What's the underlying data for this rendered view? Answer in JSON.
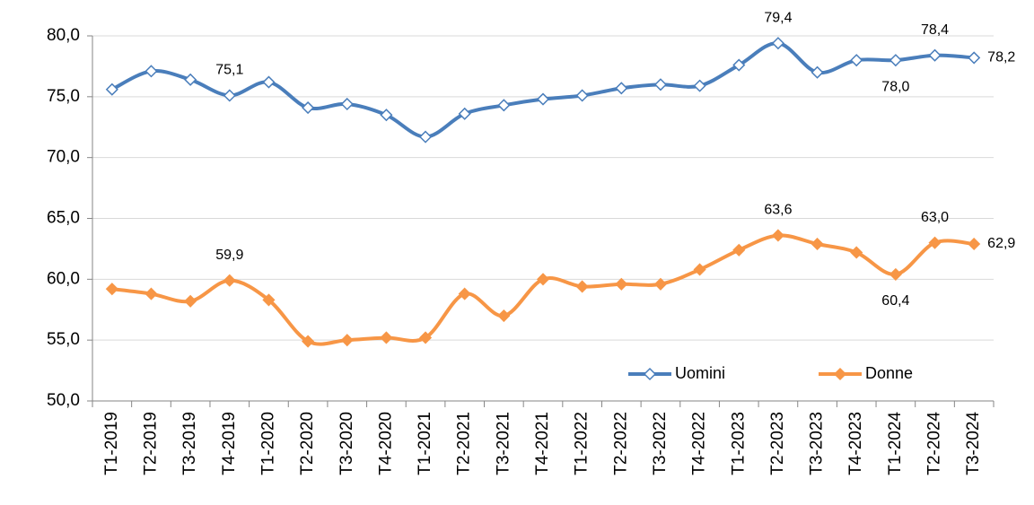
{
  "chart_data": {
    "type": "line",
    "categories": [
      "T1-2019",
      "T2-2019",
      "T3-2019",
      "T4-2019",
      "T1-2020",
      "T2-2020",
      "T3-2020",
      "T4-2020",
      "T1-2021",
      "T2-2021",
      "T3-2021",
      "T4-2021",
      "T1-2022",
      "T2-2022",
      "T3-2022",
      "T4-2022",
      "T1-2023",
      "T2-2023",
      "T3-2023",
      "T4-2023",
      "T1-2024",
      "T2-2024",
      "T3-2024"
    ],
    "series": [
      {
        "name": "Uomini",
        "color": "#4a7ebb",
        "marker_fill": "#ffffff",
        "values": [
          75.6,
          77.1,
          76.4,
          75.1,
          76.2,
          74.1,
          74.4,
          73.5,
          71.7,
          73.6,
          74.3,
          74.8,
          75.1,
          75.7,
          76.0,
          75.9,
          77.6,
          79.4,
          77.0,
          78.0,
          78.0,
          78.4,
          78.2
        ],
        "value_labels": [
          null,
          null,
          null,
          "75,1",
          null,
          null,
          null,
          null,
          null,
          null,
          null,
          null,
          null,
          null,
          null,
          null,
          null,
          "79,4",
          null,
          null,
          "78,0",
          "78,4",
          "78,2"
        ]
      },
      {
        "name": "Donne",
        "color": "#f79646",
        "marker_fill": "#f79646",
        "values": [
          59.2,
          58.8,
          58.2,
          59.9,
          58.3,
          54.9,
          55.0,
          55.2,
          55.2,
          58.8,
          57.0,
          60.0,
          59.4,
          59.6,
          59.6,
          60.8,
          62.4,
          63.6,
          62.9,
          62.2,
          60.4,
          63.0,
          62.9
        ],
        "value_labels": [
          null,
          null,
          null,
          "59,9",
          null,
          null,
          null,
          null,
          null,
          null,
          null,
          null,
          null,
          null,
          null,
          null,
          null,
          "63,6",
          null,
          null,
          "60,4",
          "63,0",
          "62,9"
        ]
      }
    ],
    "ylim": [
      50,
      80
    ],
    "yticks": [
      {
        "value": 50,
        "label": "50,0"
      },
      {
        "value": 55,
        "label": "55,0"
      },
      {
        "value": 60,
        "label": "60,0"
      },
      {
        "value": 65,
        "label": "65,0"
      },
      {
        "value": 70,
        "label": "70,0"
      },
      {
        "value": 75,
        "label": "75,0"
      },
      {
        "value": 80,
        "label": "80,0"
      }
    ],
    "grid": true,
    "legend": "lower right"
  }
}
